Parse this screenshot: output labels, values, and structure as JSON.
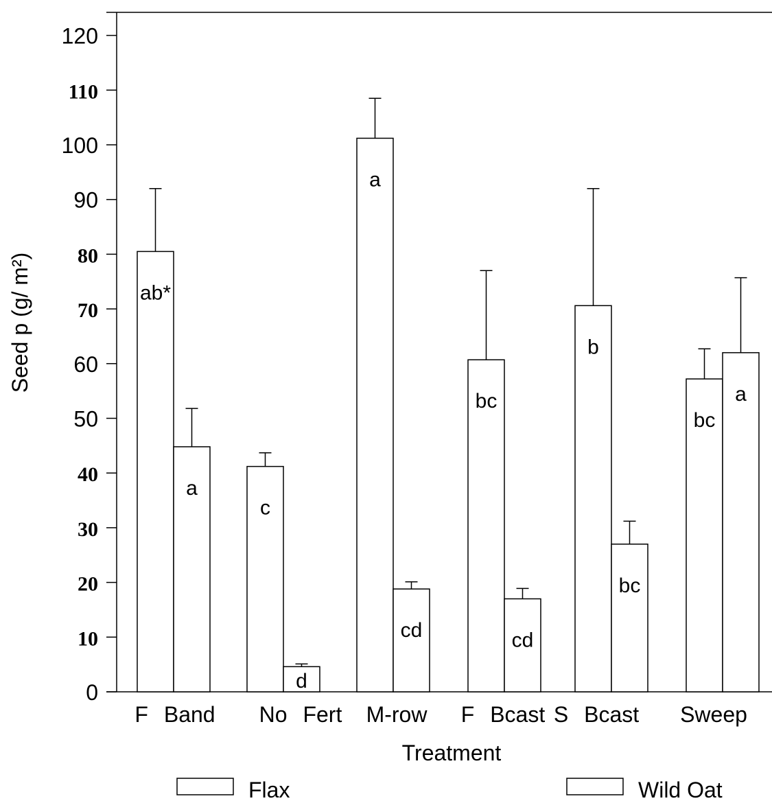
{
  "chart_data": {
    "type": "bar",
    "title": "",
    "xlabel": "Treatment",
    "ylabel": "Seed p (g/ m²)",
    "ylim": [
      0,
      120
    ],
    "yticks": [
      "0",
      "10",
      "20",
      "30",
      "40",
      "50",
      "60",
      "70",
      "80",
      "90",
      "100",
      "110",
      "120"
    ],
    "categories": [
      "F Band",
      "No Fert",
      "M-row",
      "F Bcast",
      "S Bcast",
      "Sweep"
    ],
    "series": [
      {
        "name": "Flax",
        "values": [
          80.5,
          41.2,
          101.2,
          60.7,
          70.6,
          57.2
        ],
        "errors": [
          11.5,
          2.5,
          7.3,
          16.3,
          21.4,
          5.5
        ],
        "labels": [
          "ab*",
          "c",
          "a",
          "bc",
          "b",
          "bc"
        ]
      },
      {
        "name": "Wild Oat",
        "values": [
          44.8,
          4.6,
          18.8,
          17.0,
          27.0,
          62.0
        ],
        "errors": [
          7.0,
          0.5,
          1.3,
          1.9,
          4.2,
          13.7
        ],
        "labels": [
          "a",
          "d",
          "cd",
          "cd",
          "bc",
          "a"
        ]
      }
    ],
    "grid": false,
    "legend": "bottom"
  }
}
